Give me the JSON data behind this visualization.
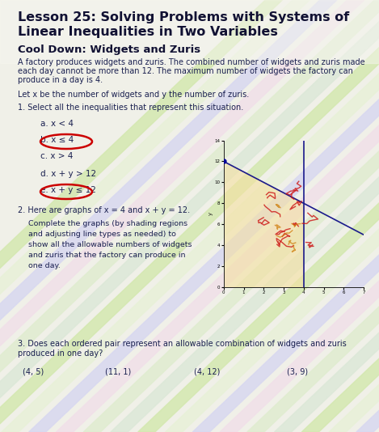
{
  "title_line1": "Lesson 25: Solving Problems with Systems of",
  "title_line2": "Linear Inequalities in Two Variables",
  "subtitle": "Cool Down: Widgets and Zuris",
  "body_text1": "A factory produces widgets and zuris. The combined number of widgets and zuris made",
  "body_text2": "each day cannot be more than 12. The maximum number of widgets the factory can",
  "body_text3": "produce in a day is 4.",
  "let_text": "Let x be the number of widgets and y the number of zuris.",
  "q1_text": "1. Select all the inequalities that represent this situation.",
  "options": [
    {
      "label": "a.",
      "expr": "x < 4",
      "circled": false
    },
    {
      "label": "b.",
      "expr": "x ≤ 4",
      "circled": true
    },
    {
      "label": "c.",
      "expr": "x > 4",
      "circled": false
    },
    {
      "label": "d.",
      "expr": "x + y > 12",
      "circled": false
    },
    {
      "label": "e.",
      "expr": "x + y ≤ 12",
      "circled": true
    }
  ],
  "q2_text": "2. Here are graphs of x = 4 and x + y = 12.",
  "q2_instruction1": "Complete the graphs (by shading regions",
  "q2_instruction2": "and adjusting line types as needed) to",
  "q2_instruction3": "show all the allowable numbers of widgets",
  "q2_instruction4": "and zuris that the factory can produce in",
  "q2_instruction5": "one day.",
  "q3_text1": "3. Does each ordered pair represent an allowable combination of widgets and zuris",
  "q3_text2": "produced in one day?",
  "pairs": [
    "(4, 5)",
    "(11, 1)",
    "(4, 12)",
    "(3, 9)"
  ],
  "bg_color": "#e8ead8",
  "text_color": "#1a2050",
  "circle_color": "#cc0000",
  "title_color": "#111133",
  "graph_xlim": [
    0,
    7
  ],
  "graph_ylim": [
    0,
    14
  ]
}
